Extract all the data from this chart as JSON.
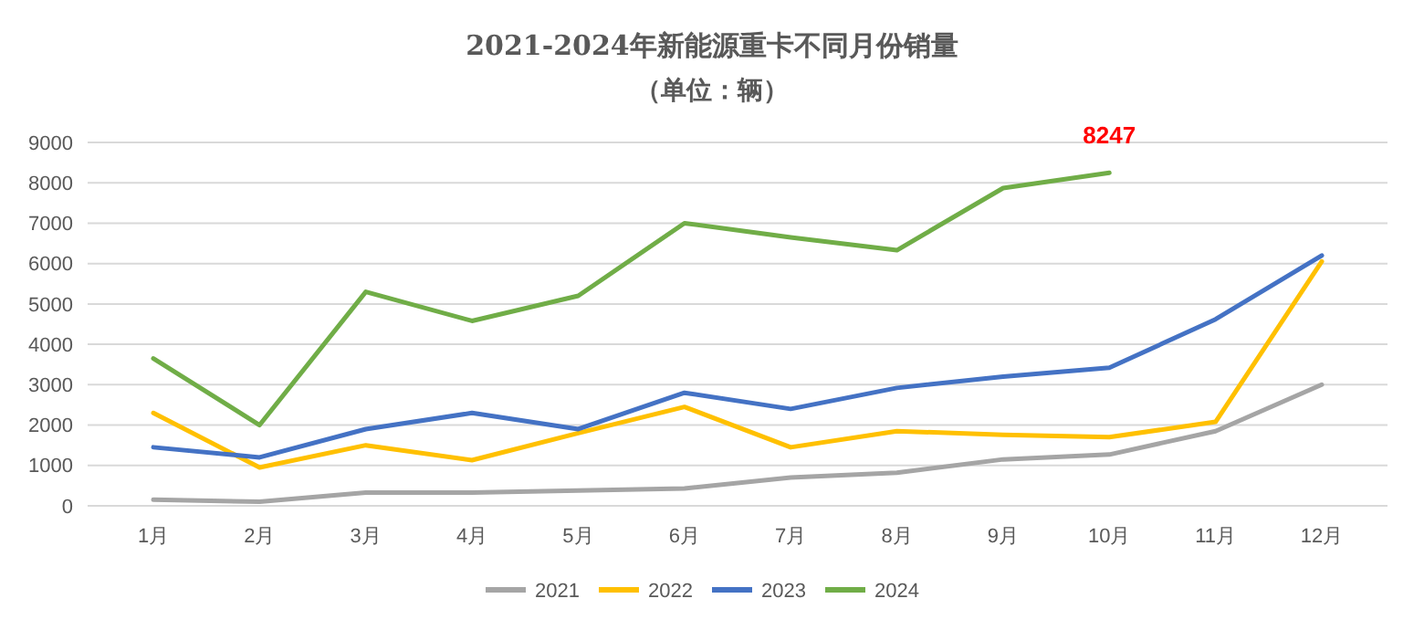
{
  "chart_data": {
    "type": "line",
    "title": "2021-2024年新能源重卡不同月份销量",
    "subtitle": "（单位：辆）",
    "categories": [
      "1月",
      "2月",
      "3月",
      "4月",
      "5月",
      "6月",
      "7月",
      "8月",
      "9月",
      "10月",
      "11月",
      "12月"
    ],
    "series": [
      {
        "name": "2021",
        "color": "#a5a5a5",
        "values": [
          150,
          100,
          330,
          330,
          380,
          430,
          700,
          820,
          1150,
          1270,
          1850,
          3000
        ]
      },
      {
        "name": "2022",
        "color": "#ffc000",
        "values": [
          2300,
          950,
          1500,
          1130,
          1800,
          2450,
          1450,
          1850,
          1760,
          1700,
          2080,
          6050
        ]
      },
      {
        "name": "2023",
        "color": "#4472c4",
        "values": [
          1450,
          1200,
          1900,
          2300,
          1900,
          2800,
          2400,
          2920,
          3200,
          3420,
          4620,
          6200
        ]
      },
      {
        "name": "2024",
        "color": "#70ad47",
        "values": [
          3650,
          2000,
          5300,
          4580,
          5200,
          7000,
          6650,
          6330,
          7870,
          8247,
          null,
          null
        ]
      }
    ],
    "annotations": [
      {
        "text": "8247",
        "x": "10月",
        "y": 8247
      }
    ],
    "ylim": [
      0,
      9000
    ],
    "yticks": [
      0,
      1000,
      2000,
      3000,
      4000,
      5000,
      6000,
      7000,
      8000,
      9000
    ],
    "grid": "y",
    "legend": "bottom",
    "marker": "none",
    "line_style": "solid"
  }
}
